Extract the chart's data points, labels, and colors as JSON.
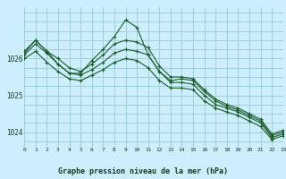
{
  "title": "Graphe pression niveau de la mer (hPa)",
  "bg_color": "#cceeff",
  "grid_color": "#99cccc",
  "line_color": "#1a5c2a",
  "x_labels": [
    "0",
    "1",
    "2",
    "3",
    "4",
    "5",
    "6",
    "7",
    "8",
    "9",
    "10",
    "11",
    "12",
    "13",
    "14",
    "15",
    "16",
    "17",
    "18",
    "19",
    "20",
    "21",
    "22",
    "23"
  ],
  "series": [
    [
      1026.2,
      1026.5,
      1026.2,
      1026.0,
      1025.75,
      1025.65,
      1025.85,
      1026.1,
      1026.4,
      1026.5,
      1026.45,
      1026.3,
      1025.8,
      1025.5,
      1025.5,
      1025.45,
      1025.15,
      1024.9,
      1024.75,
      1024.65,
      1024.5,
      1024.35,
      1023.95,
      1024.05
    ],
    [
      1026.1,
      1026.4,
      1026.15,
      1025.85,
      1025.6,
      1025.55,
      1025.7,
      1025.9,
      1026.15,
      1026.25,
      1026.2,
      1026.1,
      1025.65,
      1025.35,
      1025.35,
      1025.3,
      1025.0,
      1024.75,
      1024.65,
      1024.55,
      1024.4,
      1024.25,
      1023.85,
      1023.95
    ],
    [
      1026.15,
      1026.5,
      1026.2,
      1025.85,
      1025.6,
      1025.6,
      1025.95,
      1026.25,
      1026.6,
      1027.05,
      1026.85,
      1026.1,
      1025.65,
      1025.4,
      1025.45,
      1025.4,
      1025.1,
      1024.85,
      1024.7,
      1024.6,
      1024.45,
      1024.3,
      1023.9,
      1024.0
    ],
    [
      1026.0,
      1026.2,
      1025.9,
      1025.65,
      1025.45,
      1025.4,
      1025.55,
      1025.7,
      1025.9,
      1026.0,
      1025.95,
      1025.75,
      1025.4,
      1025.2,
      1025.2,
      1025.15,
      1024.85,
      1024.65,
      1024.55,
      1024.45,
      1024.3,
      1024.15,
      1023.8,
      1023.9
    ]
  ],
  "ylim": [
    1023.6,
    1027.4
  ],
  "yticks": [
    1024,
    1025,
    1026
  ],
  "xlim": [
    0,
    23
  ]
}
